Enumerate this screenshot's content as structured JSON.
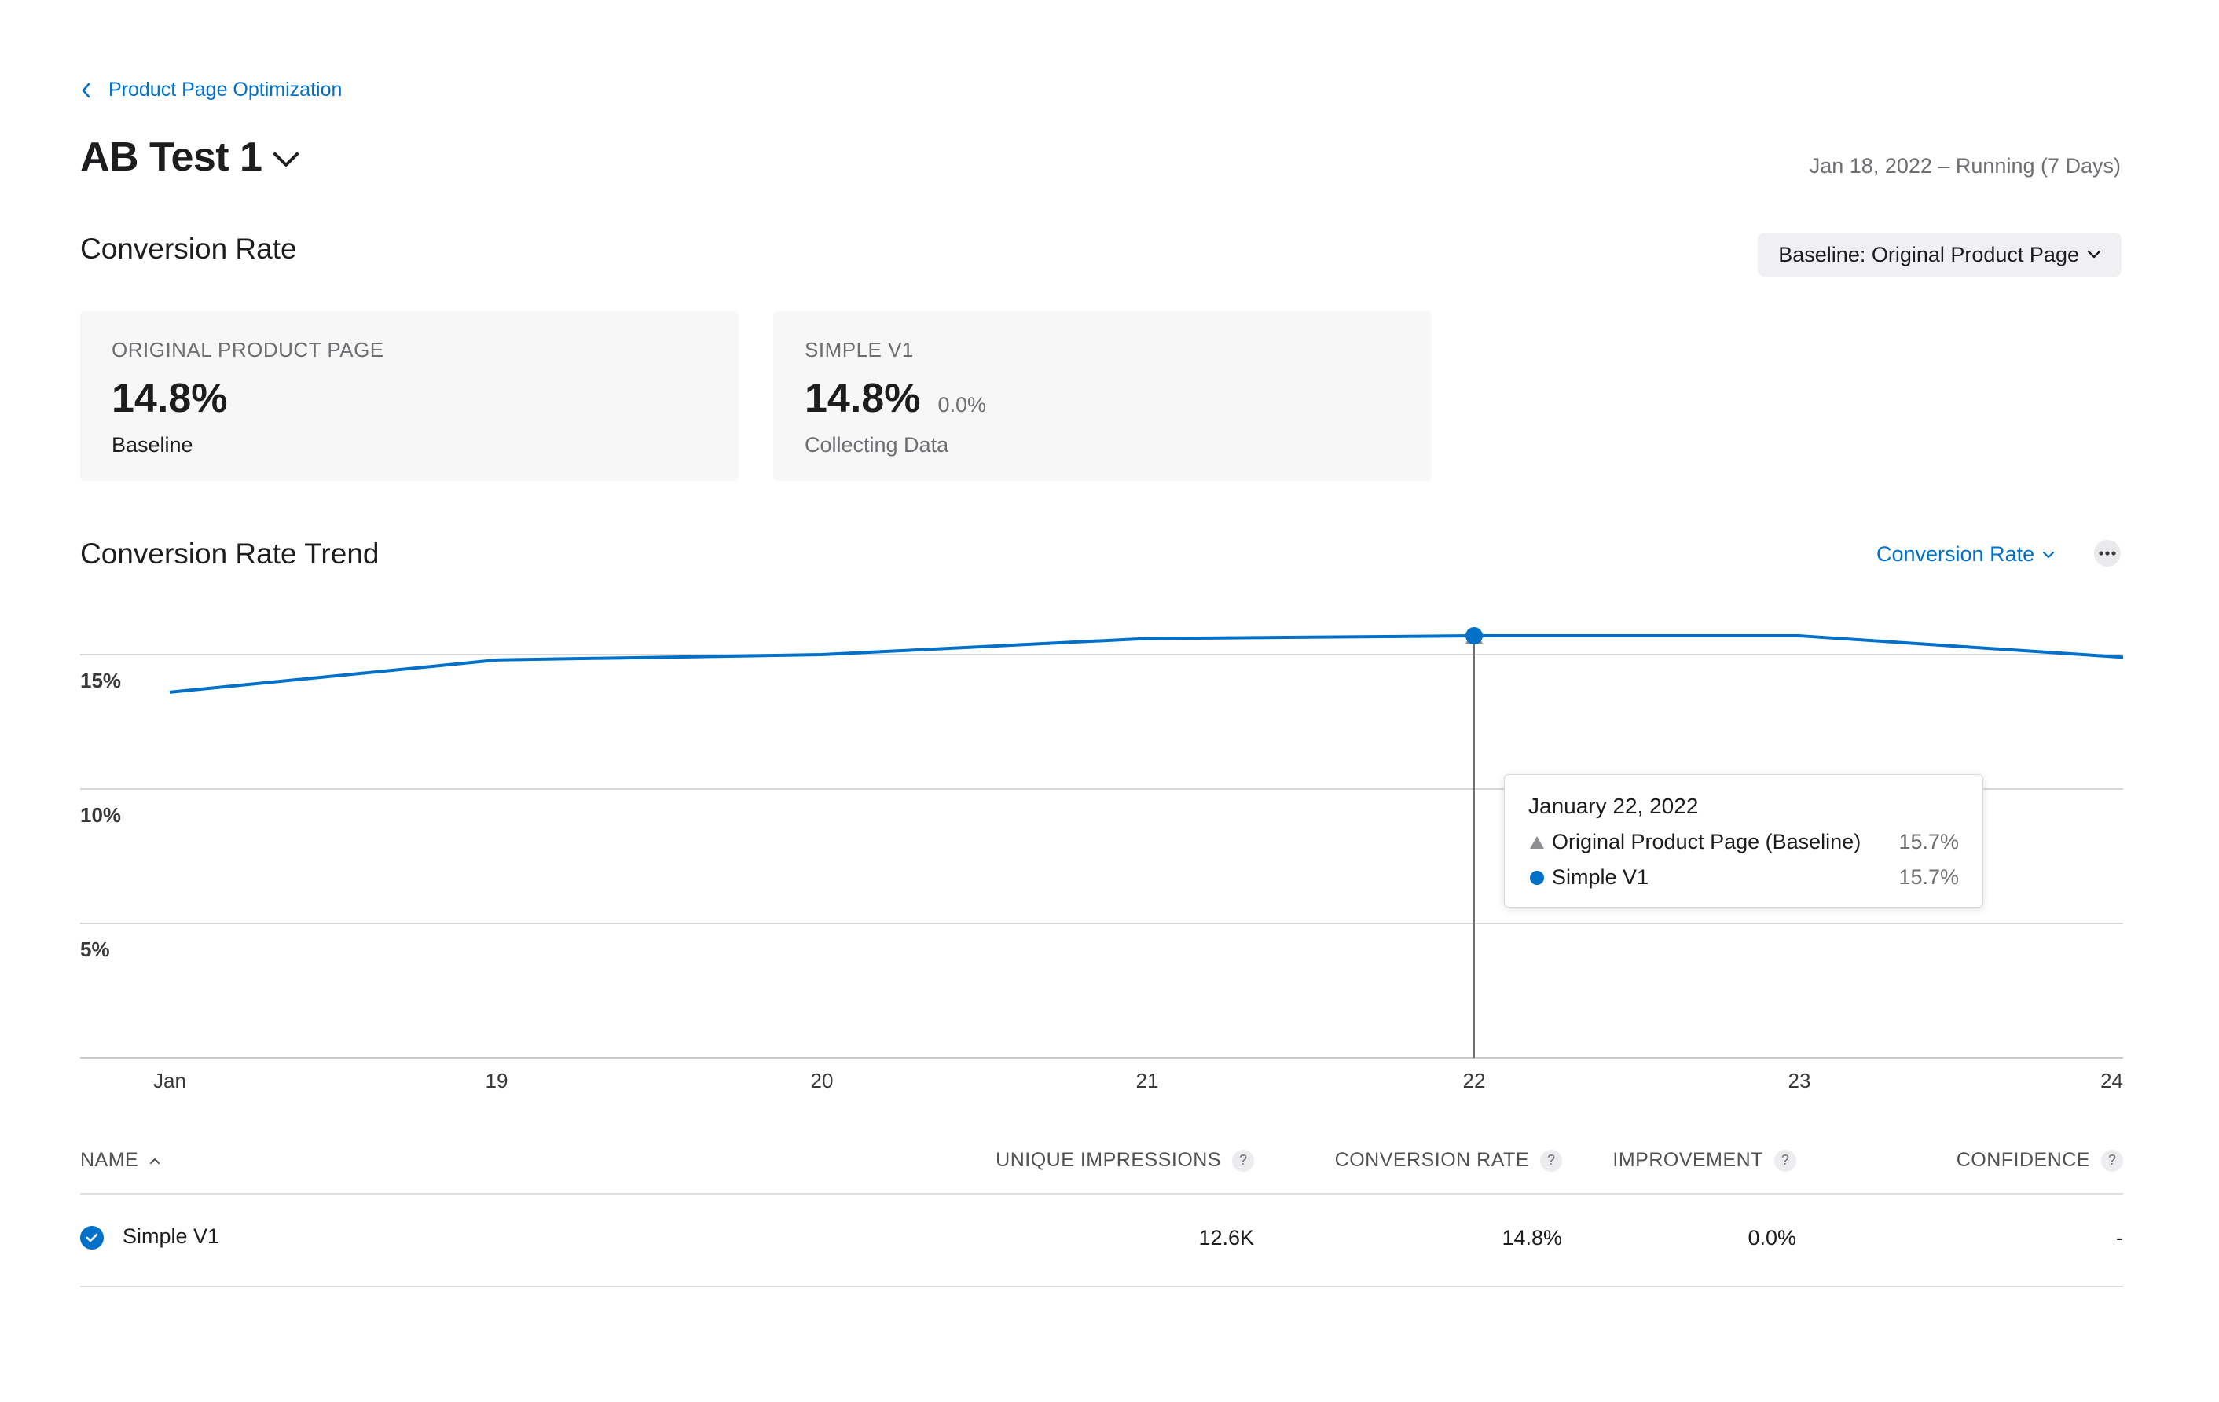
{
  "breadcrumb": {
    "label": "Product Page Optimization"
  },
  "header": {
    "title": "AB Test 1",
    "date_status": "Jan 18, 2022 – Running (7 Days)"
  },
  "conversion": {
    "section_title": "Conversion Rate",
    "baseline_select": "Baseline: Original Product Page",
    "cards": [
      {
        "label": "ORIGINAL PRODUCT PAGE",
        "value": "14.8%",
        "delta": "",
        "sub": "Baseline"
      },
      {
        "label": "SIMPLE V1",
        "value": "14.8%",
        "delta": "0.0%",
        "sub": "Collecting Data"
      }
    ]
  },
  "trend": {
    "section_title": "Conversion Rate Trend",
    "metric_select": "Conversion Rate",
    "tooltip": {
      "date": "January 22, 2022",
      "rows": [
        {
          "name": "Original Product Page (Baseline)",
          "value": "15.7%"
        },
        {
          "name": "Simple V1",
          "value": "15.7%"
        }
      ]
    }
  },
  "chart_data": {
    "type": "line",
    "title": "",
    "xlabel": "",
    "ylabel": "",
    "x": [
      "Jan",
      "19",
      "20",
      "21",
      "22",
      "23",
      "24"
    ],
    "y_ticks": [
      "15%",
      "10%",
      "5%"
    ],
    "ylim": [
      0,
      16
    ],
    "grid": true,
    "series": [
      {
        "name": "Original Product Page (Baseline)",
        "marker": "triangle",
        "color": "#8e8e93",
        "values": [
          13.6,
          14.8,
          15.0,
          15.6,
          15.7,
          15.7,
          14.9
        ]
      },
      {
        "name": "Simple V1",
        "marker": "circle",
        "color": "#0070c9",
        "values": [
          13.6,
          14.8,
          15.0,
          15.6,
          15.7,
          15.7,
          14.9
        ]
      }
    ],
    "highlight_index": 4
  },
  "table": {
    "headers": {
      "name": "NAME",
      "impressions": "UNIQUE IMPRESSIONS",
      "conversion": "CONVERSION RATE",
      "improvement": "IMPROVEMENT",
      "confidence": "CONFIDENCE"
    },
    "help_glyph": "?",
    "rows": [
      {
        "name": "Simple V1",
        "impressions": "12.6K",
        "conversion": "14.8%",
        "improvement": "0.0%",
        "confidence": "-"
      }
    ]
  },
  "colors": {
    "accent": "#0070c9",
    "baseline_series": "#8e8e93",
    "grid": "#d8d8dc"
  }
}
